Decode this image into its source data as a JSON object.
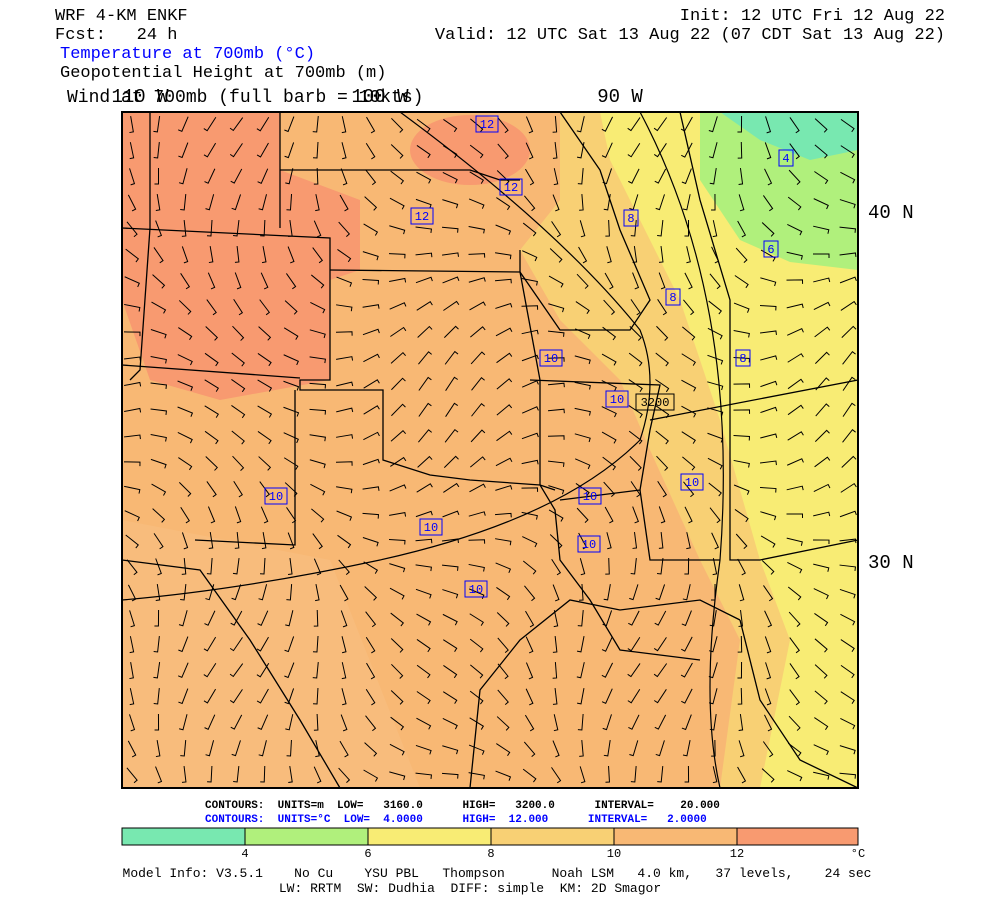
{
  "header": {
    "model": "WRF 4-KM ENKF",
    "init": "Init: 12 UTC Fri 12 Aug 22",
    "fcst": "Fcst:   24 h",
    "valid": "Valid: 12 UTC Sat 13 Aug 22 (07 CDT Sat 13 Aug 22)",
    "fields": [
      "Temperature at 700mb (°C)",
      "Geopotential Height at 700mb (m)",
      "Wind at 700mb (full barb = 10kts)"
    ]
  },
  "map": {
    "lon_labels": [
      "110 W",
      "100 W",
      "90 W"
    ],
    "lat_labels": [
      "40 N",
      "30 N"
    ],
    "contour_labels": [
      "12",
      "12",
      "12",
      "8",
      "4",
      "6",
      "8",
      "8",
      "10",
      "10",
      "3200",
      "10",
      "10",
      "10",
      "10",
      "10",
      "10"
    ]
  },
  "contour_info": [
    "CONTOURS:  UNITS=m  LOW=   3160.0      HIGH=   3200.0      INTERVAL=    20.000",
    "CONTOURS:  UNITS=°C  LOW=  4.0000      HIGH=  12.000      INTERVAL=   2.0000"
  ],
  "colorbar": {
    "labels": [
      "4",
      "6",
      "8",
      "10",
      "12"
    ],
    "unit": "°C"
  },
  "footer": [
    "Model Info: V3.5.1    No Cu    YSU PBL   Thompson      Noah LSM   4.0 km,   37 levels,    24 sec",
    "LW: RRTM  SW: Dudhia  DIFF: simple  KM: 2D Smagor"
  ]
}
